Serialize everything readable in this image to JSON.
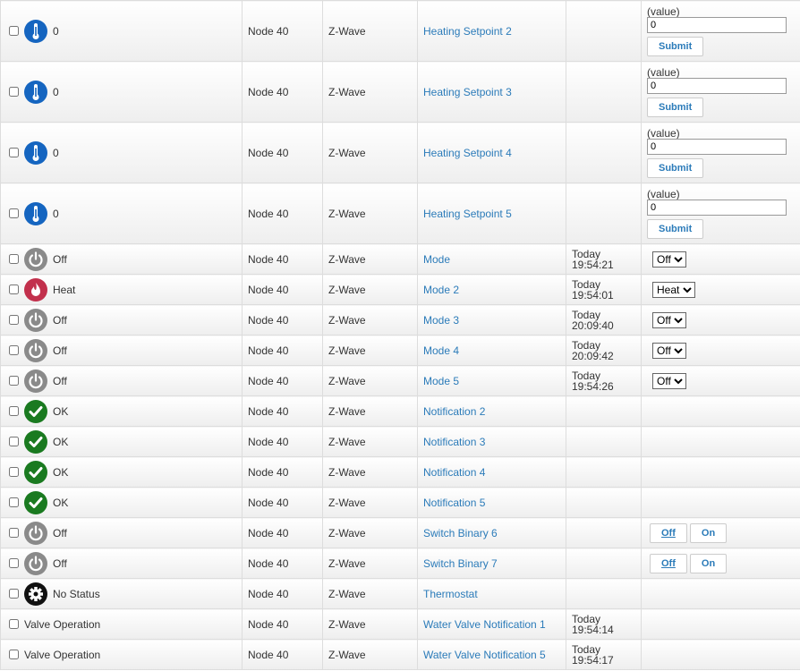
{
  "rows": [
    {
      "status": "0",
      "node": "Node 40",
      "protocol": "Z-Wave",
      "name": "Heating Setpoint 2",
      "control": {
        "label": "(value)",
        "input": "0",
        "button": "Submit"
      }
    },
    {
      "status": "0",
      "node": "Node 40",
      "protocol": "Z-Wave",
      "name": "Heating Setpoint 3",
      "control": {
        "label": "(value)",
        "input": "0",
        "button": "Submit"
      }
    },
    {
      "status": "0",
      "node": "Node 40",
      "protocol": "Z-Wave",
      "name": "Heating Setpoint 4",
      "control": {
        "label": "(value)",
        "input": "0",
        "button": "Submit"
      }
    },
    {
      "status": "0",
      "node": "Node 40",
      "protocol": "Z-Wave",
      "name": "Heating Setpoint 5",
      "control": {
        "label": "(value)",
        "input": "0",
        "button": "Submit"
      }
    },
    {
      "status": "Off",
      "node": "Node 40",
      "protocol": "Z-Wave",
      "name": "Mode",
      "date": "Today",
      "clock": "19:54:21",
      "select": "Off"
    },
    {
      "status": "Heat",
      "node": "Node 40",
      "protocol": "Z-Wave",
      "name": "Mode 2",
      "date": "Today",
      "clock": "19:54:01",
      "select": "Heat"
    },
    {
      "status": "Off",
      "node": "Node 40",
      "protocol": "Z-Wave",
      "name": "Mode 3",
      "date": "Today",
      "clock": "20:09:40",
      "select": "Off"
    },
    {
      "status": "Off",
      "node": "Node 40",
      "protocol": "Z-Wave",
      "name": "Mode 4",
      "date": "Today",
      "clock": "20:09:42",
      "select": "Off"
    },
    {
      "status": "Off",
      "node": "Node 40",
      "protocol": "Z-Wave",
      "name": "Mode 5",
      "date": "Today",
      "clock": "19:54:26",
      "select": "Off"
    },
    {
      "status": "OK",
      "node": "Node 40",
      "protocol": "Z-Wave",
      "name": "Notification 2"
    },
    {
      "status": "OK",
      "node": "Node 40",
      "protocol": "Z-Wave",
      "name": "Notification 3"
    },
    {
      "status": "OK",
      "node": "Node 40",
      "protocol": "Z-Wave",
      "name": "Notification 4"
    },
    {
      "status": "OK",
      "node": "Node 40",
      "protocol": "Z-Wave",
      "name": "Notification 5"
    },
    {
      "status": "Off",
      "node": "Node 40",
      "protocol": "Z-Wave",
      "name": "Switch Binary 6",
      "buttons": [
        "Off",
        "On"
      ]
    },
    {
      "status": "Off",
      "node": "Node 40",
      "protocol": "Z-Wave",
      "name": "Switch Binary 7",
      "buttons": [
        "Off",
        "On"
      ]
    },
    {
      "status": "No Status",
      "node": "Node 40",
      "protocol": "Z-Wave",
      "name": "Thermostat"
    },
    {
      "status": "Valve Operation",
      "node": "Node 40",
      "protocol": "Z-Wave",
      "name": "Water Valve Notification 1",
      "date": "Today",
      "clock": "19:54:14"
    },
    {
      "status": "Valve Operation",
      "node": "Node 40",
      "protocol": "Z-Wave",
      "name": "Water Valve Notification 5",
      "date": "Today",
      "clock": "19:54:17"
    }
  ]
}
